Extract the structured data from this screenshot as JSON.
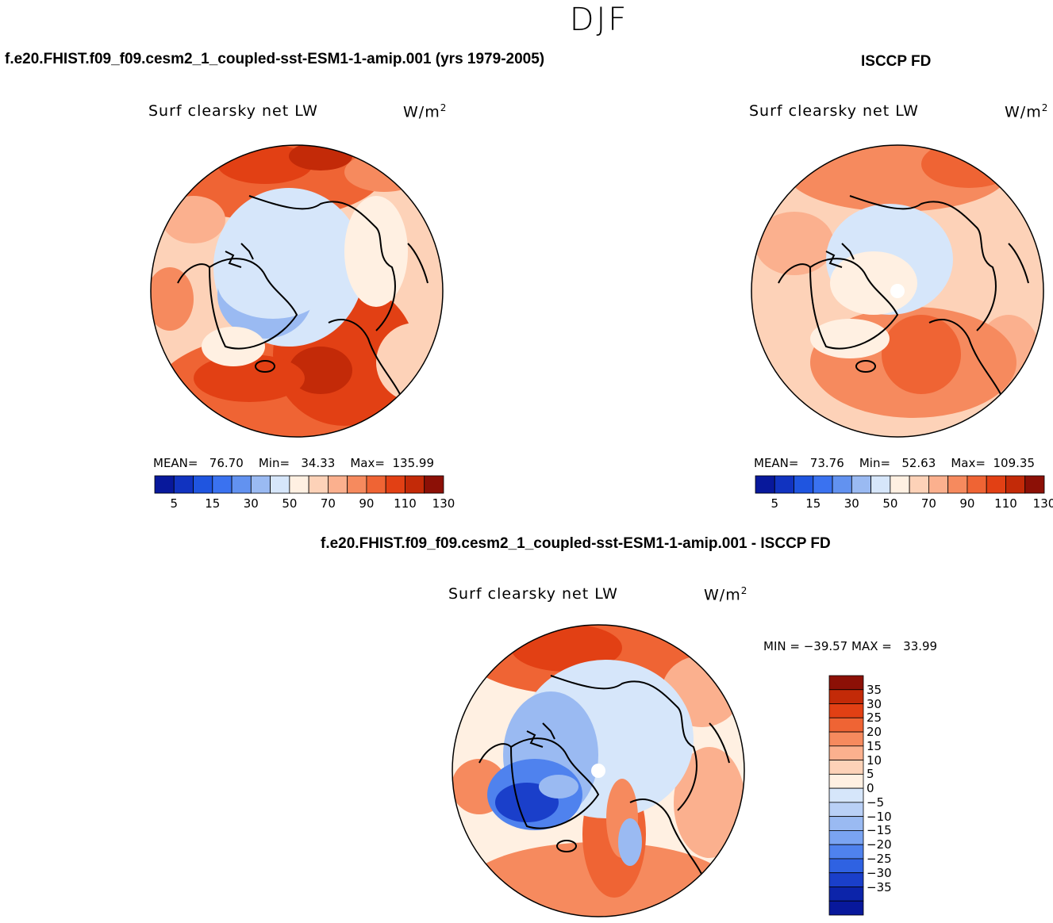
{
  "figure": {
    "season": "DJF",
    "variable_label": "Surf clearsky net LW",
    "units_base": "W/m",
    "units_exp": "2"
  },
  "panels": {
    "model": {
      "title": "f.e20.FHIST.f09_f09.cesm2_1_coupled-sst-ESM1-1-amip.001 (yrs 1979-2005)",
      "mean_label": "MEAN=",
      "mean": "76.70",
      "min_label": "Min=",
      "min": "34.33",
      "max_label": "Max=",
      "max": "135.99"
    },
    "obs": {
      "title": "ISCCP FD",
      "mean_label": "MEAN=",
      "mean": "73.76",
      "min_label": "Min=",
      "min": "52.63",
      "max_label": "Max=",
      "max": "109.35"
    },
    "diff": {
      "title": "f.e20.FHIST.f09_f09.cesm2_1_coupled-sst-ESM1-1-amip.001 - ISCCP FD",
      "minmax_min_label": "MIN =",
      "min": "−39.57",
      "minmax_max_label": "MAX =",
      "max": "33.99"
    }
  },
  "colorbars": {
    "abs": {
      "colors": [
        "#08189b",
        "#1133c0",
        "#1f55e0",
        "#3a72f0",
        "#6292f0",
        "#9abaf2",
        "#d6e6fa",
        "#fff0e2",
        "#fdd2b8",
        "#fbb08e",
        "#f68a5e",
        "#ef6434",
        "#e24014",
        "#c32a08",
        "#8c1006"
      ],
      "tick_labels": [
        "5",
        "15",
        "30",
        "50",
        "70",
        "90",
        "110",
        "130"
      ]
    },
    "diff": {
      "colors_top_to_bottom": [
        "#8c1006",
        "#c32a08",
        "#e24014",
        "#ef6434",
        "#f68a5e",
        "#fbb08e",
        "#fdd2b8",
        "#fff0e2",
        "#d6e6fa",
        "#b9d0f6",
        "#9abaf2",
        "#7aa4f2",
        "#4f82ee",
        "#2f62e2",
        "#1a3fca",
        "#0c24aa",
        "#08189b"
      ],
      "tick_labels_top_to_bottom": [
        "35",
        "30",
        "25",
        "20",
        "15",
        "10",
        "5",
        "0",
        "−5",
        "−10",
        "−15",
        "−20",
        "−25",
        "−30",
        "−35"
      ]
    }
  }
}
